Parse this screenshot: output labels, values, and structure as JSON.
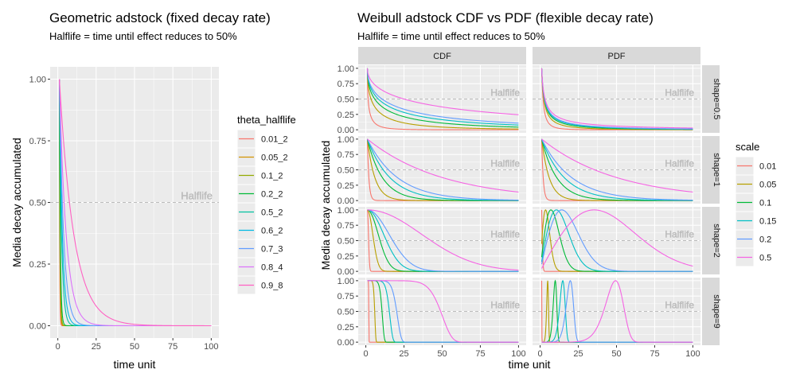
{
  "chart_data": [
    {
      "type": "line",
      "title": "Geometric adstock (fixed decay rate)",
      "subtitle": "Halflife = time until effect reduces to 50%",
      "xlabel": "time unit",
      "ylabel": "Media decay accumulated",
      "xlim": [
        0,
        100
      ],
      "ylim": [
        0,
        1
      ],
      "x_ticks": [
        0,
        25,
        50,
        75,
        100
      ],
      "y_ticks": [
        0.0,
        0.25,
        0.5,
        0.75,
        1.0
      ],
      "y_tick_labels": [
        "0.00",
        "0.25",
        "0.50",
        "0.75",
        "1.00"
      ],
      "grid": true,
      "legend_position": "right",
      "legend_title": "theta_halflife",
      "annotation": {
        "text": "Halflife",
        "y": 0.5,
        "style": "dashed"
      },
      "series": [
        {
          "name": "0.01_2",
          "theta": 0.01,
          "color": "#F8766D"
        },
        {
          "name": "0.05_2",
          "theta": 0.05,
          "color": "#D39200"
        },
        {
          "name": "0.1_2",
          "theta": 0.1,
          "color": "#93AA00"
        },
        {
          "name": "0.2_2",
          "theta": 0.2,
          "color": "#00BA38"
        },
        {
          "name": "0.5_2",
          "theta": 0.5,
          "color": "#00C19F"
        },
        {
          "name": "0.6_2",
          "theta": 0.6,
          "color": "#00B9E3"
        },
        {
          "name": "0.7_3",
          "theta": 0.7,
          "color": "#619CFF"
        },
        {
          "name": "0.8_4",
          "theta": 0.8,
          "color": "#DB72FB"
        },
        {
          "name": "0.9_8",
          "theta": 0.9,
          "color": "#FF61C3"
        }
      ]
    },
    {
      "type": "line",
      "title": "Weibull adstock CDF vs PDF (flexible decay rate)",
      "subtitle": "Halflife = time until effect reduces to 50%",
      "xlabel": "time unit",
      "ylabel": "Media decay accumulated",
      "xlim": [
        0,
        100
      ],
      "ylim": [
        0,
        1
      ],
      "x_ticks": [
        0,
        25,
        50,
        75,
        100
      ],
      "y_ticks": [
        0.0,
        0.25,
        0.5,
        0.75,
        1.0
      ],
      "y_tick_labels": [
        "0.00",
        "0.25",
        "0.50",
        "0.75",
        "1.00"
      ],
      "grid": true,
      "legend_position": "right",
      "legend_title": "scale",
      "facet_columns": [
        "CDF",
        "PDF"
      ],
      "facet_rows": [
        "shape=0.5",
        "shape=1",
        "shape=2",
        "shape=9"
      ],
      "shapes": [
        0.5,
        1,
        2,
        9
      ],
      "annotation": {
        "text": "Halflife",
        "y": 0.5,
        "style": "dashed"
      },
      "series": [
        {
          "name": "0.01",
          "scale": 0.01,
          "color": "#F8766D"
        },
        {
          "name": "0.05",
          "scale": 0.05,
          "color": "#B79F00"
        },
        {
          "name": "0.1",
          "scale": 0.1,
          "color": "#00BA38"
        },
        {
          "name": "0.15",
          "scale": 0.15,
          "color": "#00BFC4"
        },
        {
          "name": "0.2",
          "scale": 0.2,
          "color": "#619CFF"
        },
        {
          "name": "0.5",
          "scale": 0.5,
          "color": "#F564E3"
        }
      ]
    }
  ]
}
